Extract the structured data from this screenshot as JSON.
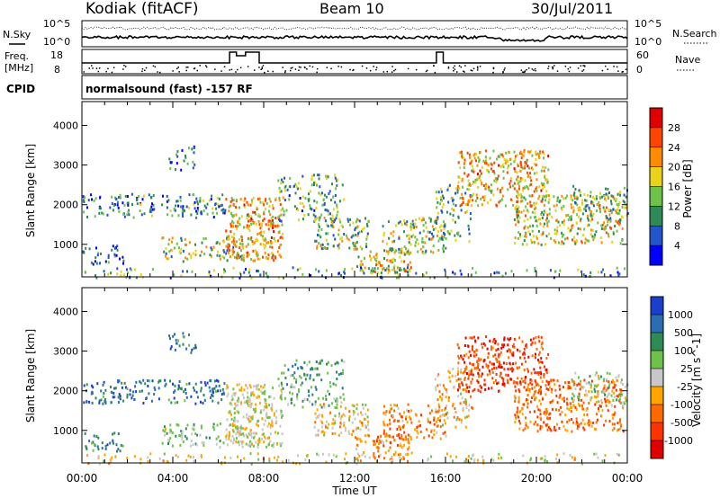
{
  "header": {
    "station": "Kodiak (fitACF)",
    "beam": "Beam 10",
    "date": "30/Jul/2011"
  },
  "side_labels": {
    "nsky": "N.Sky",
    "freq": "Freq.",
    "mhz": "[MHz]",
    "cpid": "CPID",
    "nsearch": "N.Search",
    "nave": "Nave"
  },
  "cpid_text": "normalsound (fast) -157 RF",
  "noise_panel": {
    "left_ticks": [
      "10^5",
      "10^0"
    ],
    "right_ticks": [
      "10^5",
      "10^0"
    ]
  },
  "freq_panel": {
    "left_ticks": [
      "18",
      "8"
    ],
    "right_ticks": [
      "60",
      "0"
    ]
  },
  "chart_data": [
    {
      "type": "heatmap",
      "name": "power",
      "ylabel": "Slant Range [km]",
      "ylim": [
        180,
        4600
      ],
      "yticks": [
        "1000",
        "2000",
        "3000",
        "4000"
      ],
      "xlim": [
        0,
        24
      ],
      "colorbar": {
        "label": "Power [dB]",
        "ticks": [
          "4",
          "8",
          "12",
          "16",
          "20",
          "24",
          "28"
        ],
        "colors": [
          "#0000ff",
          "#2255cc",
          "#2e8b57",
          "#6cc24a",
          "#e8d21a",
          "#ff8c00",
          "#ff4500",
          "#e00000"
        ]
      }
    },
    {
      "type": "heatmap",
      "name": "velocity",
      "ylabel": "Slant Range [km]",
      "ylim": [
        180,
        4600
      ],
      "yticks": [
        "1000",
        "2000",
        "3000",
        "4000"
      ],
      "xlim": [
        0,
        24
      ],
      "xlabel": "Time UT",
      "xticks": [
        "00:00",
        "04:00",
        "08:00",
        "12:00",
        "16:00",
        "20:00",
        "00:00"
      ],
      "colorbar": {
        "label": "Velocity [m s^-1]",
        "ticks": [
          "1000",
          "500",
          "100",
          "25",
          "-25",
          "-100",
          "-500",
          "-1000"
        ],
        "colors": [
          "#1a3fcc",
          "#2a6db5",
          "#2e8b57",
          "#6cc24a",
          "#c8c8c8",
          "#ffa500",
          "#ff6a00",
          "#ff3300",
          "#e00000"
        ]
      }
    }
  ],
  "echo_regions": [
    {
      "t0": 0.0,
      "t1": 6.3,
      "r0": 1700,
      "r1": 2300,
      "p": 0.35,
      "pc": 0.75,
      "vc": 0.15
    },
    {
      "t0": 0.0,
      "t1": 1.8,
      "r0": 500,
      "r1": 1000,
      "p": 0.3,
      "pc": 0.85,
      "vc": 0.2
    },
    {
      "t0": 3.7,
      "t1": 5.0,
      "r0": 2900,
      "r1": 3500,
      "p": 0.25,
      "pc": 0.7,
      "vc": 0.2
    },
    {
      "t0": 3.5,
      "t1": 7.2,
      "r0": 600,
      "r1": 1200,
      "p": 0.3,
      "pc": 0.55,
      "vc": 0.4
    },
    {
      "t0": 6.3,
      "t1": 8.8,
      "r0": 600,
      "r1": 2200,
      "p": 0.55,
      "pc": 0.35,
      "vc": 0.5
    },
    {
      "t0": 8.6,
      "t1": 11.5,
      "r0": 1600,
      "r1": 2800,
      "p": 0.3,
      "pc": 0.65,
      "vc": 0.3
    },
    {
      "t0": 10.2,
      "t1": 12.6,
      "r0": 900,
      "r1": 1700,
      "p": 0.45,
      "pc": 0.55,
      "vc": 0.55
    },
    {
      "t0": 12.0,
      "t1": 14.5,
      "r0": 300,
      "r1": 900,
      "p": 0.45,
      "pc": 0.45,
      "vc": 0.7
    },
    {
      "t0": 13.2,
      "t1": 16.0,
      "r0": 800,
      "r1": 1700,
      "p": 0.4,
      "pc": 0.55,
      "vc": 0.7
    },
    {
      "t0": 15.5,
      "t1": 17.2,
      "r0": 1100,
      "r1": 2600,
      "p": 0.3,
      "pc": 0.6,
      "vc": 0.6
    },
    {
      "t0": 16.5,
      "t1": 20.5,
      "r0": 2000,
      "r1": 3400,
      "p": 0.45,
      "pc": 0.35,
      "vc": 0.85
    },
    {
      "t0": 19.0,
      "t1": 23.8,
      "r0": 1000,
      "r1": 2300,
      "p": 0.4,
      "pc": 0.45,
      "vc": 0.75
    },
    {
      "t0": 21.5,
      "t1": 24.0,
      "r0": 1600,
      "r1": 2500,
      "p": 0.3,
      "pc": 0.6,
      "vc": 0.45
    },
    {
      "t0": 0.0,
      "t1": 24.0,
      "r0": 180,
      "r1": 450,
      "p": 0.18,
      "pc": 0.7,
      "vc": 0.55
    }
  ]
}
